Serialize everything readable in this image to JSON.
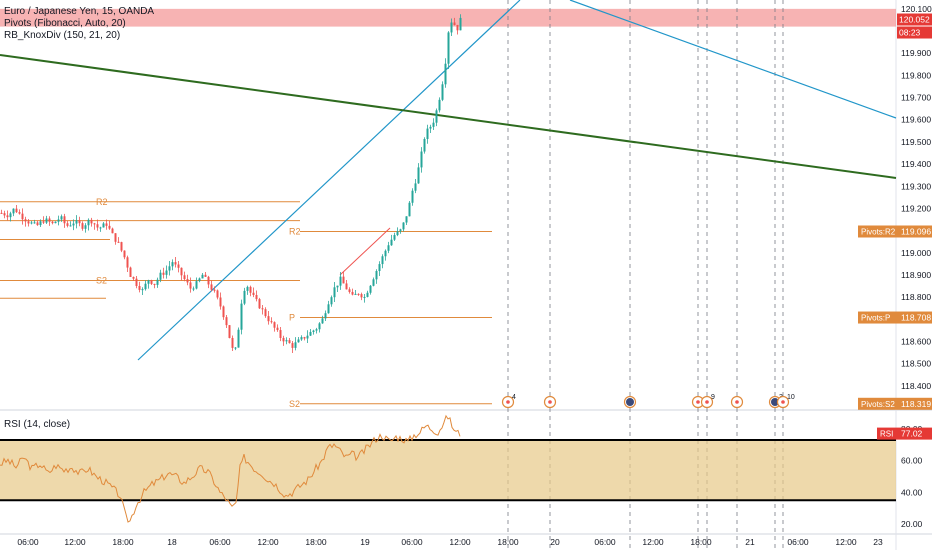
{
  "legend": {
    "symbol_line": "Euro / Japanese Yen, 15, OANDA",
    "indicator_pivots": "Pivots (Fibonacci, Auto, 20)",
    "indicator_knox": "RB_KnoxDiv (150, 21, 20)"
  },
  "rsi_pane": {
    "label": "RSI (14, close)"
  },
  "colors": {
    "up": "#26a69a",
    "down": "#ef5350",
    "trendline": "#2196c9",
    "green_line": "#2e6b1f",
    "pivot": "#e08a3c",
    "rsi": "#e08a3c",
    "rsi_fill": "#e7c987",
    "resistance_zone": "#f28b8b",
    "price_label": "#e53935"
  },
  "price_axis": {
    "ticks": [
      "120.100",
      "119.900",
      "119.800",
      "119.700",
      "119.600",
      "119.500",
      "119.400",
      "119.300",
      "119.200",
      "119.100",
      "119.000",
      "118.900",
      "118.800",
      "118.700",
      "118.600",
      "118.500",
      "118.400"
    ],
    "current_price": "120.052",
    "countdown": "08:23",
    "pivot_labels": [
      {
        "label": "Pivots:R2",
        "value": "119.096"
      },
      {
        "label": "Pivots:P",
        "value": "118.708"
      },
      {
        "label": "Pivots:S2",
        "value": "118.319"
      }
    ]
  },
  "rsi_axis": {
    "ticks": [
      "80.00",
      "60.00",
      "40.00",
      "20.00"
    ],
    "badge_label": "RSI",
    "badge_value": "77.02"
  },
  "time_axis": {
    "labels": [
      "06:00",
      "12:00",
      "18:00",
      "18",
      "06:00",
      "12:00",
      "18:00",
      "19",
      "06:00",
      "12:00",
      "18:00",
      "20",
      "06:00",
      "12:00",
      "18:00",
      "21",
      "06:00",
      "12:00",
      "23"
    ]
  },
  "pivot_levels": {
    "left": [
      "R2",
      "S2"
    ],
    "right": [
      "R2",
      "P",
      "S2"
    ]
  },
  "event_markers": [
    "4",
    "9",
    "3",
    "10"
  ],
  "chart_data": {
    "type": "candlestick",
    "title": "Euro / Japanese Yen, 15, OANDA",
    "ylim": [
      118.3,
      120.14
    ],
    "resistance_zone": [
      120.02,
      120.1
    ],
    "current_price": 120.052,
    "pivots": {
      "R2": 119.096,
      "P": 118.708,
      "S2": 118.319
    },
    "rsi": {
      "period": 14,
      "last": 77.02,
      "band": [
        35,
        73
      ],
      "ylim": [
        15,
        90
      ]
    },
    "close_path": [
      [
        0,
        119.18
      ],
      [
        8,
        119.17
      ],
      [
        14,
        119.2
      ],
      [
        20,
        119.17
      ],
      [
        28,
        119.14
      ],
      [
        36,
        119.12
      ],
      [
        44,
        119.15
      ],
      [
        52,
        119.13
      ],
      [
        60,
        119.16
      ],
      [
        66,
        119.12
      ],
      [
        74,
        119.14
      ],
      [
        82,
        119.12
      ],
      [
        90,
        119.15
      ],
      [
        98,
        119.11
      ],
      [
        106,
        119.13
      ],
      [
        112,
        119.08
      ],
      [
        118,
        119.04
      ],
      [
        124,
        118.98
      ],
      [
        130,
        118.9
      ],
      [
        136,
        118.86
      ],
      [
        142,
        118.83
      ],
      [
        148,
        118.88
      ],
      [
        154,
        118.86
      ],
      [
        160,
        118.9
      ],
      [
        166,
        118.92
      ],
      [
        172,
        118.96
      ],
      [
        178,
        118.92
      ],
      [
        184,
        118.88
      ],
      [
        190,
        118.84
      ],
      [
        196,
        118.86
      ],
      [
        202,
        118.9
      ],
      [
        208,
        118.86
      ],
      [
        214,
        118.82
      ],
      [
        220,
        118.76
      ],
      [
        226,
        118.68
      ],
      [
        230,
        118.6
      ],
      [
        234,
        118.53
      ],
      [
        238,
        118.66
      ],
      [
        242,
        118.82
      ],
      [
        246,
        118.86
      ],
      [
        250,
        118.82
      ],
      [
        256,
        118.78
      ],
      [
        262,
        118.74
      ],
      [
        268,
        118.7
      ],
      [
        274,
        118.66
      ],
      [
        280,
        118.62
      ],
      [
        286,
        118.6
      ],
      [
        292,
        118.58
      ],
      [
        298,
        118.6
      ],
      [
        304,
        118.62
      ],
      [
        310,
        118.64
      ],
      [
        316,
        118.66
      ],
      [
        322,
        118.7
      ],
      [
        328,
        118.78
      ],
      [
        334,
        118.84
      ],
      [
        340,
        118.88
      ],
      [
        346,
        118.84
      ],
      [
        352,
        118.8
      ],
      [
        358,
        118.82
      ],
      [
        364,
        118.8
      ],
      [
        370,
        118.86
      ],
      [
        376,
        118.92
      ],
      [
        382,
        118.98
      ],
      [
        388,
        119.04
      ],
      [
        394,
        119.08
      ],
      [
        400,
        119.1
      ],
      [
        404,
        119.14
      ],
      [
        408,
        119.2
      ],
      [
        412,
        119.28
      ],
      [
        416,
        119.34
      ],
      [
        420,
        119.42
      ],
      [
        424,
        119.52
      ],
      [
        428,
        119.56
      ],
      [
        432,
        119.58
      ],
      [
        436,
        119.64
      ],
      [
        440,
        119.72
      ],
      [
        444,
        119.82
      ],
      [
        448,
        120.0
      ],
      [
        452,
        120.06
      ],
      [
        456,
        120.0
      ],
      [
        460,
        120.05
      ]
    ],
    "rsi_path": [
      [
        0,
        58
      ],
      [
        8,
        60
      ],
      [
        16,
        56
      ],
      [
        24,
        62
      ],
      [
        32,
        55
      ],
      [
        40,
        58
      ],
      [
        48,
        52
      ],
      [
        56,
        57
      ],
      [
        64,
        54
      ],
      [
        72,
        56
      ],
      [
        80,
        52
      ],
      [
        88,
        55
      ],
      [
        96,
        50
      ],
      [
        104,
        47
      ],
      [
        112,
        43
      ],
      [
        120,
        38
      ],
      [
        126,
        24
      ],
      [
        130,
        22
      ],
      [
        136,
        32
      ],
      [
        144,
        40
      ],
      [
        152,
        45
      ],
      [
        160,
        48
      ],
      [
        168,
        52
      ],
      [
        176,
        50
      ],
      [
        184,
        46
      ],
      [
        192,
        50
      ],
      [
        200,
        55
      ],
      [
        208,
        53
      ],
      [
        214,
        47
      ],
      [
        220,
        40
      ],
      [
        226,
        36
      ],
      [
        232,
        30
      ],
      [
        236,
        33
      ],
      [
        240,
        55
      ],
      [
        244,
        62
      ],
      [
        250,
        58
      ],
      [
        256,
        54
      ],
      [
        262,
        52
      ],
      [
        268,
        48
      ],
      [
        274,
        46
      ],
      [
        280,
        42
      ],
      [
        286,
        38
      ],
      [
        292,
        40
      ],
      [
        300,
        44
      ],
      [
        308,
        48
      ],
      [
        316,
        55
      ],
      [
        322,
        60
      ],
      [
        328,
        68
      ],
      [
        334,
        70
      ],
      [
        340,
        66
      ],
      [
        346,
        62
      ],
      [
        352,
        64
      ],
      [
        358,
        62
      ],
      [
        364,
        66
      ],
      [
        370,
        70
      ],
      [
        376,
        74
      ],
      [
        382,
        76
      ],
      [
        390,
        72
      ],
      [
        396,
        75
      ],
      [
        402,
        74
      ],
      [
        408,
        72
      ],
      [
        414,
        76
      ],
      [
        420,
        78
      ],
      [
        426,
        82
      ],
      [
        432,
        80
      ],
      [
        438,
        78
      ],
      [
        444,
        84
      ],
      [
        448,
        88
      ],
      [
        452,
        82
      ],
      [
        456,
        78
      ],
      [
        460,
        77
      ]
    ]
  }
}
